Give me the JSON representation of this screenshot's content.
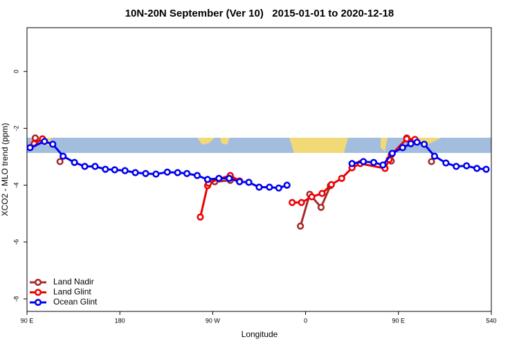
{
  "chart_data": {
    "type": "line",
    "title": "10N-20N September (Ver 10)   2015-01-01 to 2020-12-18",
    "x_label": "Longitude",
    "y_label": "XCO2 - MLO trend (ppm)",
    "xlim": [
      90,
      540
    ],
    "xticks": [
      {
        "value": 90,
        "label": "90 E"
      },
      180,
      {
        "value": 270,
        "label": "90 W"
      },
      {
        "value": 360,
        "label": "0"
      },
      {
        "value": 450,
        "label": "90 E"
      },
      540
    ],
    "ylim": [
      -8.44,
      1.54
    ],
    "yticks": [
      0,
      -2,
      -4,
      -6,
      -8
    ],
    "legend": "bottom-left",
    "series": [
      {
        "name": "Land Nadir",
        "color": "#a52a2a",
        "x": [
          98,
          null,
          122,
          null,
          272,
          287,
          null,
          355,
          364,
          375,
          384,
          null,
          443,
          null,
          458,
          null,
          482
        ],
        "values": [
          -2.34,
          null,
          -3.17,
          null,
          -3.88,
          -3.83,
          null,
          -5.44,
          -4.32,
          -4.78,
          -4.02,
          null,
          -3.15,
          null,
          -2.34,
          null,
          -3.17
        ]
      },
      {
        "name": "Land Glint",
        "color": "#ee0000",
        "x": [
          97,
          105,
          null,
          258,
          265,
          266,
          276,
          287,
          296,
          null,
          347,
          356,
          366,
          376,
          385,
          395,
          405,
          413,
          437,
          441,
          443,
          458,
          466
        ],
        "values": [
          -2.54,
          -2.37,
          null,
          -5.12,
          -4.02,
          -3.93,
          -3.78,
          -3.66,
          -3.85,
          null,
          -4.61,
          -4.61,
          -4.41,
          -4.29,
          -3.98,
          -3.76,
          -3.39,
          -3.24,
          -3.41,
          -3.1,
          -2.93,
          -2.37,
          -2.39
        ]
      },
      {
        "name": "Ocean Glint",
        "color": "#0000ee",
        "x": [
          93,
          107,
          115,
          125,
          136,
          146,
          156,
          166,
          175,
          185,
          195,
          205,
          215,
          226,
          236,
          245,
          255,
          265,
          276,
          286,
          296,
          305,
          315,
          325,
          334,
          342,
          null,
          405,
          416,
          426,
          435,
          444,
          454,
          462,
          468,
          475,
          485,
          496,
          506,
          516,
          526,
          535
        ],
        "values": [
          -2.68,
          -2.46,
          -2.56,
          -2.98,
          -3.2,
          -3.34,
          -3.34,
          -3.44,
          -3.46,
          -3.49,
          -3.56,
          -3.59,
          -3.61,
          -3.54,
          -3.56,
          -3.59,
          -3.66,
          -3.8,
          -3.76,
          -3.76,
          -3.88,
          -3.9,
          -4.07,
          -4.07,
          -4.1,
          -4.0,
          null,
          -3.24,
          -3.17,
          -3.2,
          -3.29,
          -2.88,
          -2.68,
          -2.54,
          -2.49,
          -2.56,
          -2.98,
          -3.22,
          -3.34,
          -3.32,
          -3.41,
          -3.44
        ]
      }
    ]
  }
}
